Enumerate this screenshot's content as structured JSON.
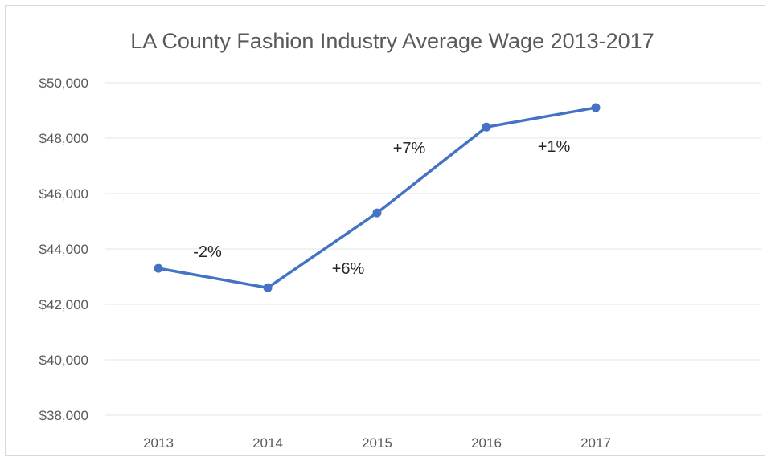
{
  "chart_data": {
    "type": "line",
    "title": "LA County Fashion Industry Average Wage 2013-2017",
    "xlabel": "",
    "ylabel": "",
    "categories": [
      "2013",
      "2014",
      "2015",
      "2016",
      "2017"
    ],
    "series": [
      {
        "values": [
          43300,
          42600,
          45300,
          48400,
          49100
        ],
        "color": "#4472c4"
      }
    ],
    "ylim": [
      38000,
      50000
    ],
    "y_ticks": [
      38000,
      40000,
      42000,
      44000,
      46000,
      48000,
      50000
    ],
    "y_tick_labels": [
      "$38,000",
      "$40,000",
      "$42,000",
      "$44,000",
      "$46,000",
      "$48,000",
      "$50,000"
    ],
    "annotations": [
      {
        "text": "-2%",
        "between": [
          "2013",
          "2014"
        ]
      },
      {
        "text": "+6%",
        "between": [
          "2014",
          "2015"
        ]
      },
      {
        "text": "+7%",
        "between": [
          "2015",
          "2016"
        ]
      },
      {
        "text": "+1%",
        "between": [
          "2016",
          "2017"
        ]
      }
    ],
    "grid": true,
    "legend": "none"
  }
}
